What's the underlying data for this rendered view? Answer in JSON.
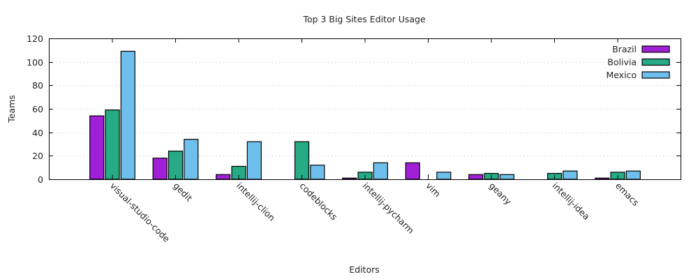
{
  "chart_data": {
    "type": "bar",
    "title": "Top 3 Big Sites Editor Usage",
    "xlabel": "Editors",
    "ylabel": "Teams",
    "ylim": [
      0,
      120
    ],
    "yticks": [
      0,
      20,
      40,
      60,
      80,
      100,
      120
    ],
    "grid": "horizontal dotted",
    "legend_position": "top-right inside",
    "categories": [
      "visual-studio-code",
      "gedit",
      "intellij-clion",
      "codeblocks",
      "intellij-pycharm",
      "vim",
      "geany",
      "intellij-idea",
      "emacs"
    ],
    "series": [
      {
        "name": "Brazil",
        "color": "#a020d8",
        "values": [
          54,
          18,
          4,
          0,
          1,
          14,
          4,
          0,
          1
        ]
      },
      {
        "name": "Bolivia",
        "color": "#26ab86",
        "values": [
          59,
          24,
          11,
          32,
          6,
          0,
          5,
          5,
          6
        ]
      },
      {
        "name": "Mexico",
        "color": "#6ebfec",
        "values": [
          109,
          34,
          32,
          12,
          14,
          6,
          4,
          7,
          7
        ]
      }
    ]
  }
}
